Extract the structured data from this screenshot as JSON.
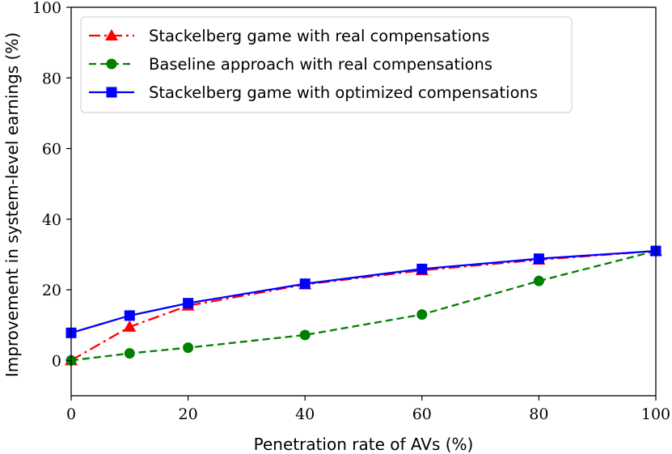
{
  "chart_data": {
    "type": "line",
    "title": "",
    "xlabel": "Penetration rate of AVs (%)",
    "ylabel": "Improvement in system-level earnings (%)",
    "xlim": [
      0,
      100
    ],
    "ylim": [
      -10,
      100
    ],
    "xticks": [
      0,
      20,
      40,
      60,
      80,
      100
    ],
    "yticks": [
      0,
      20,
      40,
      60,
      80,
      100
    ],
    "x": [
      0,
      10,
      20,
      40,
      60,
      80,
      100
    ],
    "legend_position": "top-left",
    "grid": false,
    "series": [
      {
        "name": "Stackelberg game with real compensations",
        "color": "#ff0000",
        "line_style": "dashdot",
        "marker": "triangle",
        "values": [
          0,
          9.5,
          15.5,
          21.5,
          25.5,
          28.5,
          31
        ]
      },
      {
        "name": "Baseline approach with real compensations",
        "color": "#008000",
        "line_style": "dashed",
        "marker": "circle",
        "values": [
          0,
          2,
          3.6,
          7.2,
          13,
          22.5,
          31
        ]
      },
      {
        "name": "Stackelberg game with optimized compensations",
        "color": "#0000ff",
        "line_style": "solid",
        "marker": "square",
        "values": [
          7.8,
          12.7,
          16.2,
          21.7,
          25.9,
          28.8,
          31
        ]
      }
    ]
  }
}
